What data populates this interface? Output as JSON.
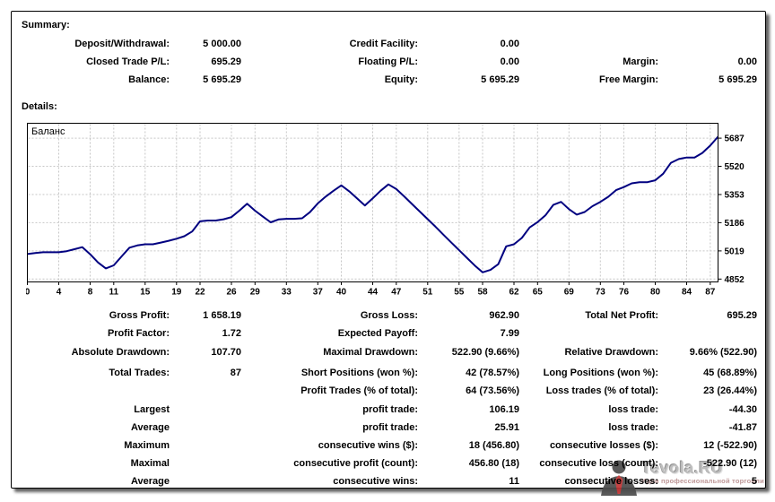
{
  "summary": {
    "title": "Summary:",
    "cells": [
      {
        "row": 0,
        "col": 0,
        "label": "Deposit/Withdrawal:",
        "value": "5 000.00"
      },
      {
        "row": 0,
        "col": 1,
        "label": "Credit Facility:",
        "value": "0.00"
      },
      {
        "row": 1,
        "col": 0,
        "label": "Closed Trade P/L:",
        "value": "695.29"
      },
      {
        "row": 1,
        "col": 1,
        "label": "Floating P/L:",
        "value": "0.00"
      },
      {
        "row": 1,
        "col": 2,
        "label": "Margin:",
        "value": "0.00"
      },
      {
        "row": 2,
        "col": 0,
        "label": "Balance:",
        "value": "5 695.29"
      },
      {
        "row": 2,
        "col": 1,
        "label": "Equity:",
        "value": "5 695.29"
      },
      {
        "row": 2,
        "col": 2,
        "label": "Free Margin:",
        "value": "5 695.29"
      }
    ]
  },
  "details": {
    "title": "Details:",
    "cells": [
      {
        "row": 0,
        "col": 0,
        "label": "Gross Profit:",
        "value": "1 658.19"
      },
      {
        "row": 0,
        "col": 1,
        "label": "Gross Loss:",
        "value": "962.90"
      },
      {
        "row": 0,
        "col": 2,
        "label": "Total Net Profit:",
        "value": "695.29"
      },
      {
        "row": 1,
        "col": 0,
        "label": "Profit Factor:",
        "value": "1.72"
      },
      {
        "row": 1,
        "col": 1,
        "label": "Expected Payoff:",
        "value": "7.99"
      },
      {
        "row": 2,
        "col": 0,
        "label": "Absolute Drawdown:",
        "value": "107.70"
      },
      {
        "row": 2,
        "col": 1,
        "label": "Maximal Drawdown:",
        "value": "522.90 (9.66%)"
      },
      {
        "row": 2,
        "col": 2,
        "label": "Relative Drawdown:",
        "value": "9.66% (522.90)"
      },
      {
        "row": 3,
        "col": 0,
        "label": "Total Trades:",
        "value": "87"
      },
      {
        "row": 3,
        "col": 1,
        "label": "Short Positions (won %):",
        "value": "42 (78.57%)"
      },
      {
        "row": 3,
        "col": 2,
        "label": "Long Positions (won %):",
        "value": "45 (68.89%)"
      },
      {
        "row": 4,
        "col": 1,
        "label": "Profit Trades (% of total):",
        "value": "64 (73.56%)"
      },
      {
        "row": 4,
        "col": 2,
        "label": "Loss trades (% of total):",
        "value": "23 (26.44%)"
      },
      {
        "row": 5,
        "col": 0,
        "label": "Largest",
        "value": ""
      },
      {
        "row": 5,
        "col": 1,
        "label": "profit trade:",
        "value": "106.19"
      },
      {
        "row": 5,
        "col": 2,
        "label": "loss trade:",
        "value": "-44.30"
      },
      {
        "row": 6,
        "col": 0,
        "label": "Average",
        "value": ""
      },
      {
        "row": 6,
        "col": 1,
        "label": "profit trade:",
        "value": "25.91"
      },
      {
        "row": 6,
        "col": 2,
        "label": "loss trade:",
        "value": "-41.87"
      },
      {
        "row": 7,
        "col": 0,
        "label": "Maximum",
        "value": ""
      },
      {
        "row": 7,
        "col": 1,
        "label": "consecutive wins ($):",
        "value": "18 (456.80)"
      },
      {
        "row": 7,
        "col": 2,
        "label": "consecutive losses ($):",
        "value": "12 (-522.90)"
      },
      {
        "row": 8,
        "col": 0,
        "label": "Maximal",
        "value": ""
      },
      {
        "row": 8,
        "col": 1,
        "label": "consecutive profit (count):",
        "value": "456.80 (18)"
      },
      {
        "row": 8,
        "col": 2,
        "label": "consecutive loss (count):",
        "value": "-522.90 (12)"
      },
      {
        "row": 9,
        "col": 0,
        "label": "Average",
        "value": ""
      },
      {
        "row": 9,
        "col": 1,
        "label": "consecutive wins:",
        "value": "11"
      },
      {
        "row": 9,
        "col": 2,
        "label": "consecutive losses:",
        "value": "5"
      }
    ]
  },
  "chart_data": {
    "type": "line",
    "title": "Баланс",
    "legend_position": "top-left-inside",
    "grid": true,
    "grid_color": "#c6c6c6",
    "line_color": "#000080",
    "x_range": [
      0,
      88
    ],
    "y_range": [
      4835,
      5775
    ],
    "x_ticks": [
      0,
      4,
      8,
      11,
      15,
      19,
      22,
      26,
      29,
      33,
      37,
      40,
      44,
      47,
      51,
      55,
      58,
      62,
      65,
      69,
      73,
      76,
      80,
      84,
      87
    ],
    "y_ticks": [
      4852,
      5019,
      5186,
      5353,
      5520,
      5687
    ],
    "series": [
      {
        "name": "Баланс",
        "values": [
          5000,
          5006,
          5011,
          5011,
          5011,
          5017,
          5029,
          5041,
          4999,
          4950,
          4915,
          4933,
          4986,
          5038,
          5051,
          5058,
          5058,
          5068,
          5079,
          5091,
          5106,
          5134,
          5194,
          5199,
          5199,
          5206,
          5219,
          5257,
          5298,
          5257,
          5222,
          5188,
          5205,
          5209,
          5209,
          5212,
          5248,
          5300,
          5340,
          5375,
          5407,
          5372,
          5330,
          5288,
          5330,
          5375,
          5413,
          5385,
          5342,
          5297,
          5252,
          5207,
          5162,
          5115,
          5069,
          5023,
          4978,
          4932,
          4892,
          4906,
          4940,
          5046,
          5058,
          5096,
          5158,
          5189,
          5229,
          5291,
          5309,
          5266,
          5234,
          5249,
          5284,
          5309,
          5339,
          5379,
          5397,
          5419,
          5426,
          5426,
          5437,
          5476,
          5541,
          5563,
          5572,
          5572,
          5599,
          5643,
          5695.29
        ]
      }
    ]
  },
  "watermark": {
    "title": "Tevola.RU",
    "subtitle": "Идеи профессиональной торговли"
  }
}
